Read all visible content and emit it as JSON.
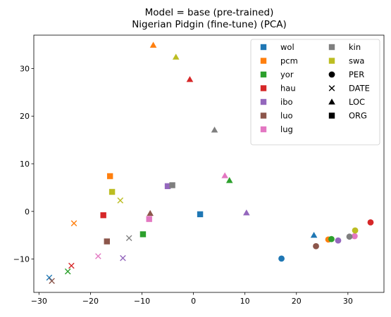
{
  "chart_data": {
    "type": "scatter",
    "title_lines": [
      "Model = base (pre-trained)",
      "Nigerian Pidgin (fine-tune) (PCA)"
    ],
    "xlim": [
      -31,
      37
    ],
    "ylim": [
      -17,
      37
    ],
    "xticks": [
      -30,
      -20,
      -10,
      0,
      10,
      20,
      30
    ],
    "yticks": [
      -10,
      0,
      10,
      20,
      30
    ],
    "grid": false,
    "legend_position": "top-right",
    "languages": [
      {
        "name": "wol",
        "color": "#1f77b4"
      },
      {
        "name": "pcm",
        "color": "#ff7f0e"
      },
      {
        "name": "yor",
        "color": "#2ca02c"
      },
      {
        "name": "hau",
        "color": "#d62728"
      },
      {
        "name": "ibo",
        "color": "#9467bd"
      },
      {
        "name": "luo",
        "color": "#8c564b"
      },
      {
        "name": "lug",
        "color": "#e377c2"
      },
      {
        "name": "kin",
        "color": "#7f7f7f"
      },
      {
        "name": "swa",
        "color": "#bcbd22"
      }
    ],
    "entity_types": [
      {
        "name": "PER",
        "marker": "circle"
      },
      {
        "name": "DATE",
        "marker": "x"
      },
      {
        "name": "LOC",
        "marker": "triangle"
      },
      {
        "name": "ORG",
        "marker": "square"
      }
    ],
    "points": [
      {
        "lang": "wol",
        "type": "PER",
        "x": 17.1,
        "y": -9.9
      },
      {
        "lang": "pcm",
        "type": "PER",
        "x": 26.2,
        "y": -5.9
      },
      {
        "lang": "yor",
        "type": "PER",
        "x": 26.8,
        "y": -5.8
      },
      {
        "lang": "hau",
        "type": "PER",
        "x": 34.4,
        "y": -2.3
      },
      {
        "lang": "ibo",
        "type": "PER",
        "x": 28.1,
        "y": -6.1
      },
      {
        "lang": "luo",
        "type": "PER",
        "x": 23.8,
        "y": -7.3
      },
      {
        "lang": "lug",
        "type": "PER",
        "x": 31.3,
        "y": -5.2
      },
      {
        "lang": "kin",
        "type": "PER",
        "x": 30.3,
        "y": -5.3
      },
      {
        "lang": "swa",
        "type": "PER",
        "x": 31.4,
        "y": -4.0
      },
      {
        "lang": "wol",
        "type": "DATE",
        "x": -28.0,
        "y": -13.9
      },
      {
        "lang": "pcm",
        "type": "DATE",
        "x": -23.2,
        "y": -2.5
      },
      {
        "lang": "yor",
        "type": "DATE",
        "x": -24.4,
        "y": -12.6
      },
      {
        "lang": "hau",
        "type": "DATE",
        "x": -23.7,
        "y": -11.4
      },
      {
        "lang": "ibo",
        "type": "DATE",
        "x": -13.7,
        "y": -9.8
      },
      {
        "lang": "luo",
        "type": "DATE",
        "x": -27.5,
        "y": -14.6
      },
      {
        "lang": "lug",
        "type": "DATE",
        "x": -18.5,
        "y": -9.4
      },
      {
        "lang": "kin",
        "type": "DATE",
        "x": -12.5,
        "y": -5.6
      },
      {
        "lang": "swa",
        "type": "DATE",
        "x": -14.2,
        "y": 2.3
      },
      {
        "lang": "wol",
        "type": "LOC",
        "x": 23.4,
        "y": -5.0
      },
      {
        "lang": "pcm",
        "type": "LOC",
        "x": -7.8,
        "y": 34.9
      },
      {
        "lang": "yor",
        "type": "LOC",
        "x": 7.0,
        "y": 6.5
      },
      {
        "lang": "hau",
        "type": "LOC",
        "x": -0.7,
        "y": 27.7
      },
      {
        "lang": "ibo",
        "type": "LOC",
        "x": 10.3,
        "y": -0.3
      },
      {
        "lang": "luo",
        "type": "LOC",
        "x": -8.4,
        "y": -0.4
      },
      {
        "lang": "lug",
        "type": "LOC",
        "x": 6.1,
        "y": 7.5
      },
      {
        "lang": "kin",
        "type": "LOC",
        "x": 4.1,
        "y": 17.1
      },
      {
        "lang": "swa",
        "type": "LOC",
        "x": -3.4,
        "y": 32.4
      },
      {
        "lang": "wol",
        "type": "ORG",
        "x": 1.3,
        "y": -0.6
      },
      {
        "lang": "pcm",
        "type": "ORG",
        "x": -16.2,
        "y": 7.4
      },
      {
        "lang": "yor",
        "type": "ORG",
        "x": -9.8,
        "y": -4.8
      },
      {
        "lang": "hau",
        "type": "ORG",
        "x": -17.5,
        "y": -0.8
      },
      {
        "lang": "ibo",
        "type": "ORG",
        "x": -5.0,
        "y": 5.3
      },
      {
        "lang": "luo",
        "type": "ORG",
        "x": -16.8,
        "y": -6.3
      },
      {
        "lang": "lug",
        "type": "ORG",
        "x": -8.6,
        "y": -1.6
      },
      {
        "lang": "kin",
        "type": "ORG",
        "x": -4.1,
        "y": 5.5
      },
      {
        "lang": "swa",
        "type": "ORG",
        "x": -15.8,
        "y": 4.1
      }
    ]
  }
}
